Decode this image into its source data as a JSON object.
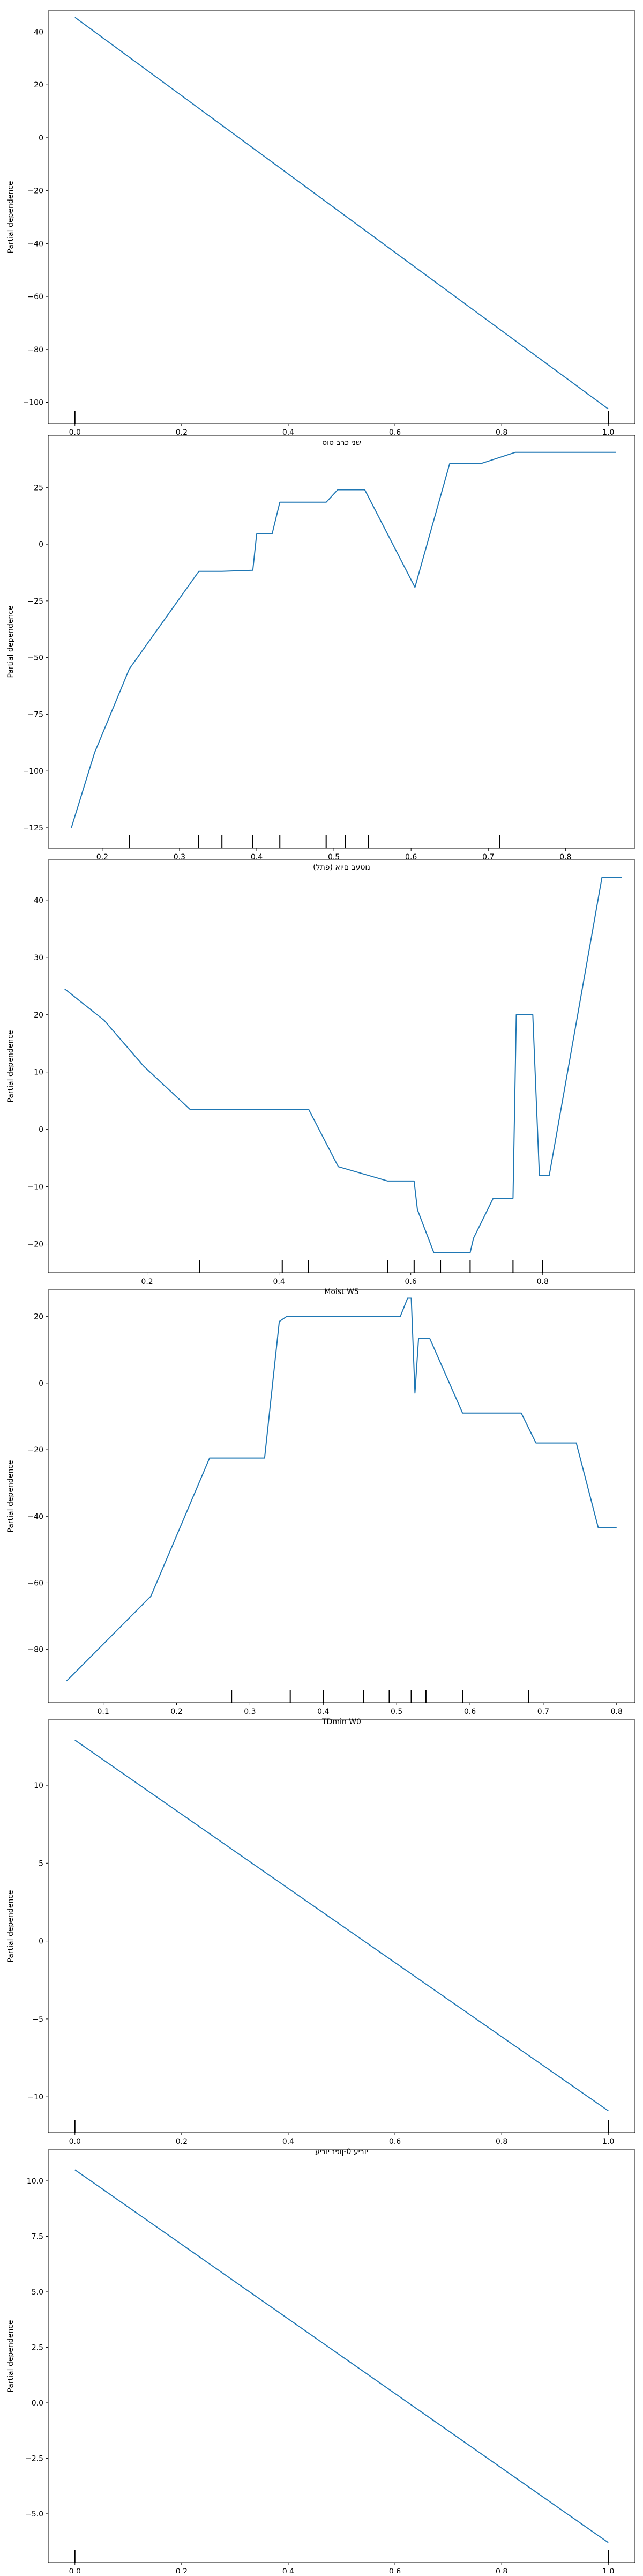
{
  "line_color": "#1f77b4",
  "rug_color": "#000000",
  "frame_color": "#000000",
  "chart_data": [
    {
      "type": "line",
      "xlabel": "שני כרב סוס",
      "ylabel": "Partial dependence",
      "xlim": [
        -0.05,
        1.05
      ],
      "ylim": [
        -108,
        48
      ],
      "xticks": [
        0.0,
        0.2,
        0.4,
        0.6,
        0.8,
        1.0
      ],
      "xtick_labels": [
        "0.0",
        "0.2",
        "0.4",
        "0.6",
        "0.8",
        "1.0"
      ],
      "yticks": [
        -100,
        -80,
        -60,
        -40,
        -20,
        0,
        20,
        40
      ],
      "ytick_labels": [
        "−100",
        "−80",
        "−60",
        "−40",
        "−20",
        "0",
        "20",
        "40"
      ],
      "rug": [
        0.0,
        1.0
      ],
      "x": [
        0.0,
        1.0
      ],
      "y": [
        45.5,
        -102.5
      ]
    },
    {
      "type": "line",
      "xlabel": "(פתל) נוטעב םיוא",
      "ylabel": "Partial dependence",
      "xlim": [
        0.13,
        0.89
      ],
      "ylim": [
        -134,
        48
      ],
      "xticks": [
        0.2,
        0.3,
        0.4,
        0.5,
        0.6,
        0.7,
        0.8
      ],
      "xtick_labels": [
        "0.2",
        "0.3",
        "0.4",
        "0.5",
        "0.6",
        "0.7",
        "0.8"
      ],
      "yticks": [
        -125,
        -100,
        -75,
        -50,
        -25,
        0,
        25
      ],
      "ytick_labels": [
        "−125",
        "−100",
        "−75",
        "−50",
        "−25",
        "0",
        "25"
      ],
      "rug": [
        0.235,
        0.325,
        0.355,
        0.395,
        0.43,
        0.49,
        0.515,
        0.545,
        0.715
      ],
      "x": [
        0.16,
        0.19,
        0.235,
        0.325,
        0.355,
        0.395,
        0.4,
        0.42,
        0.43,
        0.49,
        0.505,
        0.54,
        0.605,
        0.65,
        0.69,
        0.735,
        0.865
      ],
      "y": [
        -125,
        -92,
        -55,
        -12,
        -12,
        -11.5,
        4.5,
        4.5,
        18.5,
        18.5,
        24,
        24,
        -19,
        35.5,
        35.5,
        40.5,
        40.5
      ]
    },
    {
      "type": "line",
      "xlabel": "Moist W5",
      "ylabel": "Partial dependence",
      "xlim": [
        0.05,
        0.94
      ],
      "ylim": [
        -25,
        47
      ],
      "xticks": [
        0.2,
        0.4,
        0.6,
        0.8
      ],
      "xtick_labels": [
        "0.2",
        "0.4",
        "0.6",
        "0.8"
      ],
      "yticks": [
        -20,
        -10,
        0,
        10,
        20,
        30,
        40
      ],
      "ytick_labels": [
        "−20",
        "−10",
        "0",
        "10",
        "20",
        "30",
        "40"
      ],
      "rug": [
        0.28,
        0.405,
        0.445,
        0.565,
        0.605,
        0.645,
        0.69,
        0.755,
        0.8
      ],
      "x": [
        0.075,
        0.135,
        0.195,
        0.265,
        0.445,
        0.49,
        0.565,
        0.605,
        0.61,
        0.635,
        0.69,
        0.695,
        0.725,
        0.755,
        0.76,
        0.785,
        0.795,
        0.81,
        0.89,
        0.92
      ],
      "y": [
        24.5,
        19,
        11,
        3.5,
        3.5,
        -6.5,
        -9,
        -9,
        -14,
        -21.5,
        -21.5,
        -19,
        -12,
        -12,
        20,
        20,
        -8,
        -8,
        44,
        44
      ]
    },
    {
      "type": "line",
      "xlabel": "TDmin W0",
      "ylabel": "Partial dependence",
      "xlim": [
        0.025,
        0.825
      ],
      "ylim": [
        -96,
        28
      ],
      "xticks": [
        0.1,
        0.2,
        0.3,
        0.4,
        0.5,
        0.6,
        0.7,
        0.8
      ],
      "xtick_labels": [
        "0.1",
        "0.2",
        "0.3",
        "0.4",
        "0.5",
        "0.6",
        "0.7",
        "0.8"
      ],
      "yticks": [
        -80,
        -60,
        -40,
        -20,
        0,
        20
      ],
      "ytick_labels": [
        "−80",
        "−60",
        "−40",
        "−20",
        "0",
        "20"
      ],
      "rug": [
        0.275,
        0.355,
        0.4,
        0.455,
        0.49,
        0.52,
        0.54,
        0.59,
        0.68
      ],
      "x": [
        0.05,
        0.165,
        0.245,
        0.32,
        0.34,
        0.35,
        0.505,
        0.515,
        0.52,
        0.525,
        0.53,
        0.545,
        0.59,
        0.67,
        0.69,
        0.745,
        0.775,
        0.8
      ],
      "y": [
        -89.5,
        -64,
        -22.5,
        -22.5,
        18.5,
        20,
        20,
        25.5,
        25.5,
        -3,
        13.5,
        13.5,
        -9,
        -9,
        -18,
        -18,
        -43.5,
        -43.5
      ]
    },
    {
      "type": "line",
      "xlabel": "יוביע 0-ןופנ יוביע",
      "ylabel": "Partial dependence",
      "xlim": [
        -0.05,
        1.05
      ],
      "ylim": [
        -12.3,
        14.2
      ],
      "xticks": [
        0.0,
        0.2,
        0.4,
        0.6,
        0.8,
        1.0
      ],
      "xtick_labels": [
        "0.0",
        "0.2",
        "0.4",
        "0.6",
        "0.8",
        "1.0"
      ],
      "yticks": [
        -10,
        -5,
        0,
        5,
        10
      ],
      "ytick_labels": [
        "−10",
        "−5",
        "0",
        "5",
        "10"
      ],
      "rug": [
        0.0,
        1.0
      ],
      "x": [
        0.0,
        1.0
      ],
      "y": [
        12.9,
        -10.9
      ]
    },
    {
      "type": "line",
      "xlabel": "7 ידגפו-ידגפו",
      "ylabel": "Partial dependence",
      "xlim": [
        -0.05,
        1.05
      ],
      "ylim": [
        -7.2,
        11.4
      ],
      "xticks": [
        0.0,
        0.2,
        0.4,
        0.6,
        0.8,
        1.0
      ],
      "xtick_labels": [
        "0.0",
        "0.2",
        "0.4",
        "0.6",
        "0.8",
        "1.0"
      ],
      "yticks": [
        -5.0,
        -2.5,
        0.0,
        2.5,
        5.0,
        7.5,
        10.0
      ],
      "ytick_labels": [
        "−5.0",
        "−2.5",
        "0.0",
        "2.5",
        "5.0",
        "7.5",
        "10.0"
      ],
      "rug": [
        0.0,
        1.0
      ],
      "x": [
        0.0,
        1.0
      ],
      "y": [
        10.5,
        -6.3
      ]
    }
  ]
}
